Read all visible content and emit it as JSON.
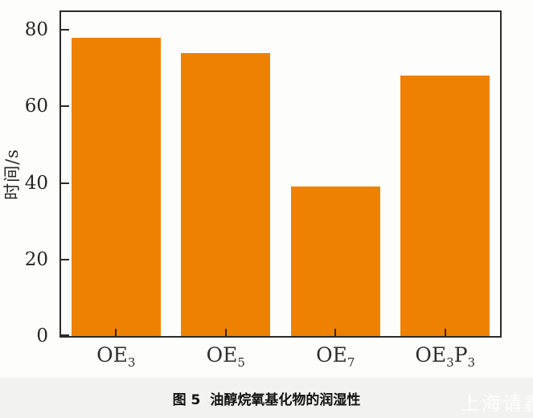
{
  "chart_data": {
    "type": "bar",
    "categories": [
      "OE3",
      "OE5",
      "OE7",
      "OE3P3"
    ],
    "categories_rich": [
      [
        "OE",
        "3"
      ],
      [
        "OE",
        "5"
      ],
      [
        "OE",
        "7"
      ],
      [
        "OE",
        "3",
        "P",
        "3"
      ]
    ],
    "values": [
      78,
      74,
      39,
      68
    ],
    "title": "",
    "xlabel": "",
    "ylabel": "时间/s",
    "yticks": [
      0,
      20,
      40,
      60,
      80
    ],
    "ylim": [
      0,
      84.6
    ],
    "grid": false,
    "legend_position": "none",
    "bar_color": "#ee8200",
    "axis_color": "#2b2b2b",
    "tick_label_color": "#262626"
  },
  "caption": {
    "figure_label": "图 5",
    "text": "油醇烷氧基化物的润湿性"
  },
  "watermark": {
    "text": "上海请鑫",
    "color": "#ffffff"
  },
  "colors": {
    "chart_background": "#fdfdfc",
    "caption_strip_background": "#f2f2f1"
  }
}
